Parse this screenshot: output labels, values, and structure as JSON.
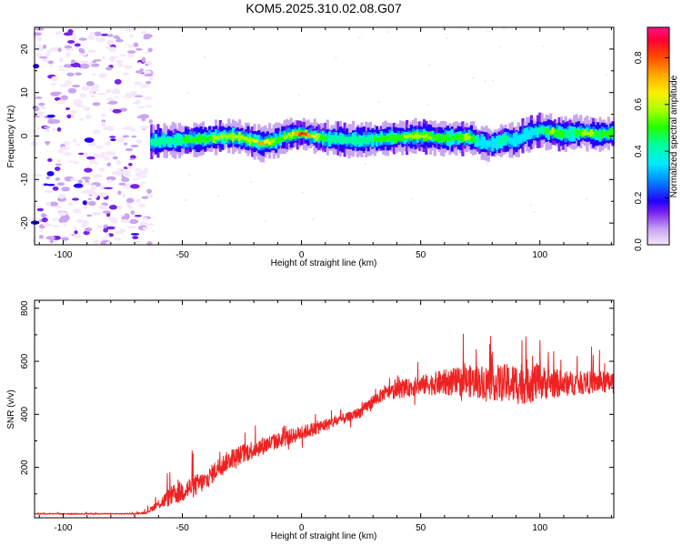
{
  "title": "KOM5.2025.310.02.08.G07",
  "chart_data": [
    {
      "type": "heatmap",
      "title": "KOM5.2025.310.02.08.G07",
      "xlabel": "Height of straight line (km)",
      "ylabel": "Frequency (Hz)",
      "xlim": [
        -112,
        131
      ],
      "ylim": [
        -25,
        25
      ],
      "xticks": [
        -100,
        -50,
        0,
        50,
        100
      ],
      "yticks": [
        -20,
        -10,
        0,
        10,
        20
      ],
      "xtick_labels": [
        "-100",
        "-50",
        "0",
        "50",
        "100"
      ],
      "ytick_labels": [
        "-20",
        "-10",
        "0",
        "10",
        "20"
      ],
      "ridge_profile": {
        "x": [
          -63,
          -50,
          -40,
          -30,
          -22,
          -17,
          -10,
          -5,
          0,
          10,
          20,
          30,
          40,
          50,
          60,
          70,
          75,
          80,
          85,
          90,
          95,
          100,
          105,
          110,
          115,
          120,
          125,
          131
        ],
        "y": [
          -1.3,
          -1.0,
          -0.6,
          0.0,
          -0.8,
          -1.8,
          -0.8,
          0.2,
          0.6,
          -0.6,
          -0.9,
          -0.8,
          -0.3,
          0.0,
          -0.5,
          -0.3,
          -1.5,
          -2.0,
          -0.8,
          -1.0,
          0.5,
          1.2,
          1.0,
          0.3,
          0.8,
          0.8,
          0.2,
          0.8
        ],
        "peak_amplitude": [
          0.45,
          0.5,
          0.55,
          0.65,
          0.6,
          0.78,
          0.55,
          0.6,
          0.9,
          0.5,
          0.5,
          0.5,
          0.55,
          0.65,
          0.5,
          0.6,
          0.4,
          0.4,
          0.45,
          0.4,
          0.35,
          0.45,
          0.6,
          0.5,
          0.5,
          0.65,
          0.5,
          0.55
        ]
      },
      "noise_region_x": [
        -112,
        -63
      ],
      "colorbar": {
        "label": "Normalized spectral amplitude",
        "range": [
          0.0,
          0.93
        ],
        "ticks": [
          0.0,
          0.2,
          0.4,
          0.6,
          0.8
        ],
        "tick_labels": [
          "0.0",
          "0.2",
          "0.4",
          "0.6",
          "0.8"
        ]
      }
    },
    {
      "type": "line",
      "xlabel": "Height of straight line (km)",
      "ylabel": "SNR (v/v)",
      "xlim": [
        -112,
        131
      ],
      "ylim": [
        10,
        830
      ],
      "xticks": [
        -100,
        -50,
        0,
        50,
        100
      ],
      "yticks": [
        200,
        400,
        600,
        800
      ],
      "xtick_labels": [
        "-100",
        "-50",
        "0",
        "50",
        "100"
      ],
      "ytick_labels": [
        "200",
        "400",
        "600",
        "800"
      ],
      "color": "#ee2222",
      "series": [
        {
          "name": "SNR",
          "x": [
            -112,
            -100,
            -90,
            -80,
            -70,
            -65,
            -62,
            -55,
            -50,
            -45,
            -40,
            -35,
            -30,
            -25,
            -20,
            -10,
            0,
            10,
            20,
            25,
            30,
            35,
            40,
            50,
            60,
            70,
            80,
            90,
            95,
            100,
            110,
            120,
            131
          ],
          "base": [
            25,
            25,
            25,
            25,
            25,
            30,
            50,
            90,
            110,
            130,
            150,
            200,
            230,
            250,
            270,
            300,
            330,
            360,
            390,
            410,
            450,
            480,
            490,
            510,
            520,
            525,
            520,
            515,
            525,
            520,
            515,
            520,
            520
          ],
          "noise": [
            4,
            4,
            4,
            4,
            4,
            8,
            20,
            60,
            70,
            70,
            60,
            60,
            60,
            60,
            60,
            50,
            45,
            40,
            30,
            35,
            40,
            40,
            50,
            60,
            80,
            100,
            110,
            130,
            140,
            110,
            80,
            70,
            70
          ]
        }
      ]
    }
  ]
}
